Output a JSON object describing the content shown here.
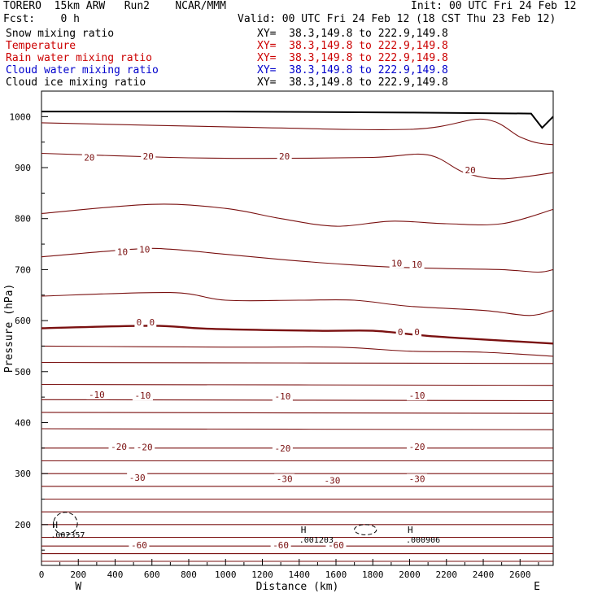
{
  "header": {
    "line1_left": "TORERO  15km ARW   Run2    NCAR/MMM",
    "line1_right": "Init: 00 UTC Fri 24 Feb 12",
    "line2_left": "Fcst:    0 h",
    "line2_right": "Valid: 00 UTC Fri 24 Feb 12 (18 CST Thu 23 Feb 12)"
  },
  "fields": [
    {
      "name": "Snow mixing ratio",
      "xy": "XY=  38.3,149.8 to 222.9,149.8",
      "color": "#000000"
    },
    {
      "name": "Temperature",
      "xy": "XY=  38.3,149.8 to 222.9,149.8",
      "color": "#cc0000"
    },
    {
      "name": "Rain water mixing ratio",
      "xy": "XY=  38.3,149.8 to 222.9,149.8",
      "color": "#cc0000"
    },
    {
      "name": "Cloud water mixing ratio",
      "xy": "XY=  38.3,149.8 to 222.9,149.8",
      "color": "#0000cc"
    },
    {
      "name": "Cloud ice mixing ratio",
      "xy": "XY=  38.3,149.8 to 222.9,149.8",
      "color": "#000000"
    }
  ],
  "chart_data": {
    "type": "contour-cross-section",
    "xlabel": "Distance (km)",
    "ylabel": "Pressure (hPa)",
    "xlim": [
      0,
      2780
    ],
    "ylim": [
      1050,
      120
    ],
    "x_ticks": [
      0,
      200,
      400,
      600,
      800,
      1000,
      1200,
      1400,
      1600,
      1800,
      2000,
      2200,
      2400,
      2600
    ],
    "y_ticks": [
      200,
      300,
      400,
      500,
      600,
      700,
      800,
      900,
      1000
    ],
    "x_end_labels": {
      "left": "W",
      "right": "E"
    },
    "contour_color": "#7a1010",
    "temperature_contours": [
      {
        "xs": [
          0,
          2780
        ],
        "ps": [
          128,
          128
        ]
      },
      {
        "xs": [
          0,
          2780
        ],
        "ps": [
          143,
          143
        ]
      },
      {
        "xs": [
          0,
          2780
        ],
        "ps": [
          158,
          158
        ]
      },
      {
        "xs": [
          0,
          2780
        ],
        "ps": [
          175,
          175
        ]
      },
      {
        "xs": [
          0,
          2780
        ],
        "ps": [
          200,
          200
        ]
      },
      {
        "xs": [
          0,
          2780
        ],
        "ps": [
          225,
          225
        ]
      },
      {
        "xs": [
          0,
          2780
        ],
        "ps": [
          250,
          250
        ]
      },
      {
        "xs": [
          0,
          2780
        ],
        "ps": [
          275,
          275
        ]
      },
      {
        "xs": [
          0,
          2780
        ],
        "ps": [
          300,
          300
        ]
      },
      {
        "xs": [
          0,
          2780
        ],
        "ps": [
          325,
          325
        ]
      },
      {
        "xs": [
          0,
          2780
        ],
        "ps": [
          350,
          350
        ]
      },
      {
        "xs": [
          0,
          2780
        ],
        "ps": [
          388,
          386
        ]
      },
      {
        "xs": [
          0,
          2780
        ],
        "ps": [
          420,
          418
        ]
      },
      {
        "xs": [
          0,
          2780
        ],
        "ps": [
          445,
          443
        ]
      },
      {
        "xs": [
          0,
          2780
        ],
        "ps": [
          475,
          473
        ]
      },
      {
        "xs": [
          0,
          2780
        ],
        "ps": [
          518,
          516
        ]
      },
      {
        "xs": [
          0,
          1000,
          1600,
          2000,
          2400,
          2780
        ],
        "ps": [
          550,
          548,
          548,
          540,
          538,
          530
        ]
      },
      {
        "xs": [
          0,
          600,
          900,
          1500,
          1800,
          2100,
          2400,
          2780
        ],
        "ps": [
          585,
          590,
          584,
          580,
          580,
          570,
          563,
          555
        ],
        "bold": true
      },
      {
        "xs": [
          0,
          700,
          1000,
          1400,
          1700,
          2000,
          2400,
          2650,
          2780
        ],
        "ps": [
          648,
          655,
          640,
          640,
          640,
          628,
          620,
          610,
          620
        ]
      },
      {
        "xs": [
          0,
          500,
          700,
          1000,
          1300,
          1650,
          1900,
          2200,
          2500,
          2700,
          2780
        ],
        "ps": [
          725,
          740,
          740,
          730,
          720,
          710,
          705,
          702,
          700,
          695,
          700
        ]
      },
      {
        "xs": [
          0,
          600,
          1000,
          1300,
          1600,
          1900,
          2200,
          2500,
          2780
        ],
        "ps": [
          810,
          828,
          820,
          800,
          785,
          795,
          790,
          790,
          818
        ]
      },
      {
        "xs": [
          0,
          700,
          1200,
          1800,
          2100,
          2300,
          2500,
          2780
        ],
        "ps": [
          928,
          920,
          918,
          920,
          925,
          890,
          878,
          890
        ]
      },
      {
        "xs": [
          0,
          1000,
          2000,
          2400,
          2600,
          2700,
          2780
        ],
        "ps": [
          988,
          980,
          975,
          995,
          960,
          948,
          945
        ]
      }
    ],
    "temperature_labels": [
      {
        "text": "-60",
        "x": 530,
        "p": 160
      },
      {
        "text": "-60",
        "x": 1300,
        "p": 160
      },
      {
        "text": "-60",
        "x": 1600,
        "p": 160
      },
      {
        "text": "-30",
        "x": 520,
        "p": 292
      },
      {
        "text": "-30",
        "x": 1320,
        "p": 290
      },
      {
        "text": "-30",
        "x": 1580,
        "p": 287
      },
      {
        "text": "-30",
        "x": 2040,
        "p": 290
      },
      {
        "text": "-20",
        "x": 420,
        "p": 353
      },
      {
        "text": "-20",
        "x": 560,
        "p": 352
      },
      {
        "text": "-20",
        "x": 1310,
        "p": 350
      },
      {
        "text": "-20",
        "x": 2040,
        "p": 353
      },
      {
        "text": "-10",
        "x": 300,
        "p": 455
      },
      {
        "text": "-10",
        "x": 550,
        "p": 453
      },
      {
        "text": "-10",
        "x": 1310,
        "p": 452
      },
      {
        "text": "-10",
        "x": 2040,
        "p": 453
      },
      {
        "text": "0",
        "x": 530,
        "p": 597
      },
      {
        "text": "0",
        "x": 600,
        "p": 597
      },
      {
        "text": "0",
        "x": 1950,
        "p": 578
      },
      {
        "text": "0",
        "x": 2040,
        "p": 578
      },
      {
        "text": "10",
        "x": 440,
        "p": 735
      },
      {
        "text": "10",
        "x": 560,
        "p": 740
      },
      {
        "text": "10",
        "x": 1930,
        "p": 713
      },
      {
        "text": "10",
        "x": 2040,
        "p": 710
      },
      {
        "text": "20",
        "x": 260,
        "p": 920
      },
      {
        "text": "20",
        "x": 580,
        "p": 922
      },
      {
        "text": "20",
        "x": 1320,
        "p": 922
      },
      {
        "text": "20",
        "x": 2330,
        "p": 895
      }
    ],
    "terrain": {
      "xs": [
        0,
        1000,
        2000,
        2660,
        2720,
        2780
      ],
      "ps": [
        1010,
        1010,
        1008,
        1006,
        978,
        1000
      ]
    },
    "cloud_ice_contours": [
      {
        "cx": 130,
        "p": 202,
        "rx": 65,
        "rp": 22
      },
      {
        "cx": 1760,
        "p": 190,
        "rx": 60,
        "rp": 10
      }
    ],
    "maxima": [
      {
        "mark": "H",
        "value": ".002357",
        "x": 50,
        "p": 200
      },
      {
        "mark": "H",
        "value": ".001203",
        "x": 1400,
        "p": 190
      },
      {
        "mark": "H",
        "value": ".000906",
        "x": 1980,
        "p": 190
      }
    ]
  }
}
